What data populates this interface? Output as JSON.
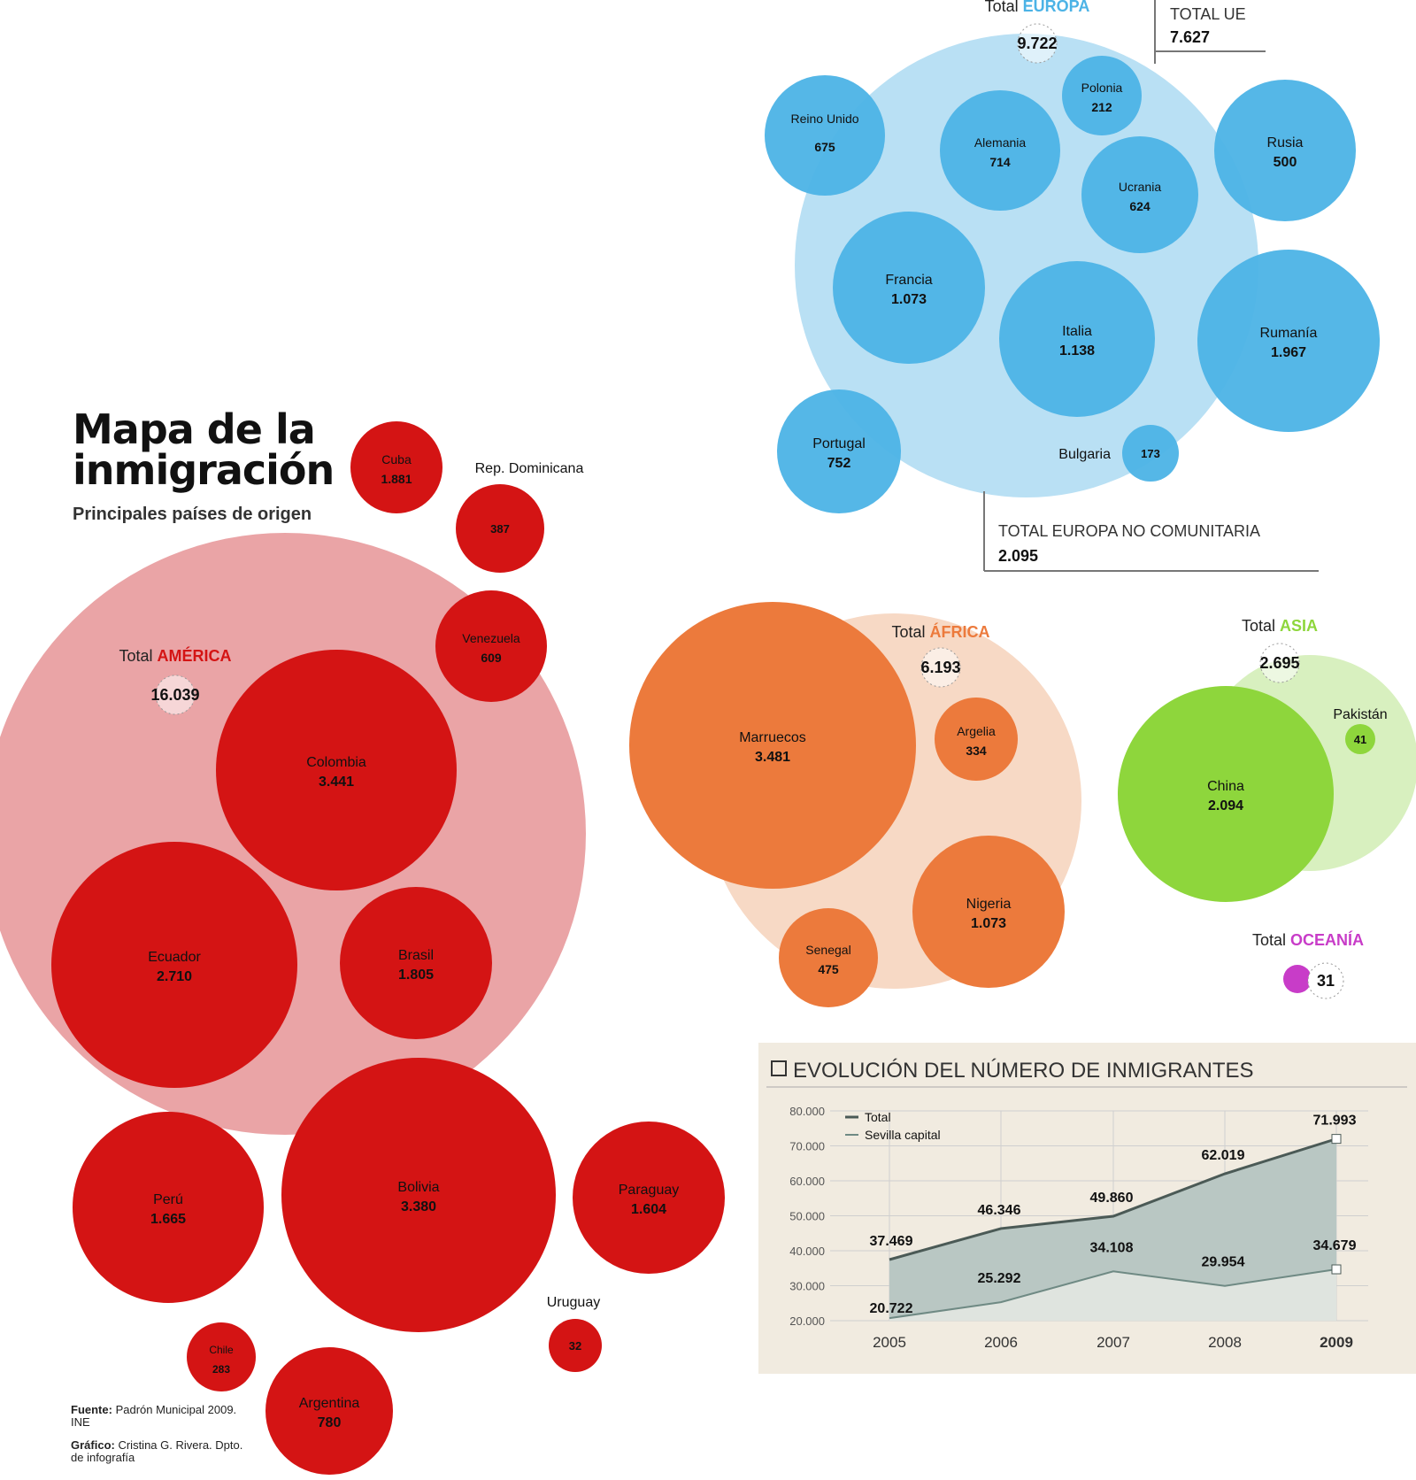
{
  "title": "Mapa de la inmigración",
  "subtitle": "Principales países de origen",
  "source": {
    "label": "Fuente:",
    "text": "Padrón Municipal 2009. INE"
  },
  "credit": {
    "label": "Gráfico:",
    "text": "Cristina G. Rivera. Dpto. de infografía"
  },
  "colors": {
    "america": "#d41414",
    "america_total": "#eaa4a6",
    "europa": "#4cb3e6",
    "europa_total": "#b9e0f4",
    "africa": "#ec7a3c",
    "africa_total": "#f7d9c5",
    "asia": "#8ed63c",
    "asia_total": "#d8f0bf",
    "oceania": "#c83cc8",
    "chart_area": "#b9c7c3",
    "chart_bg": "#f1ebe0"
  },
  "chart_data": [
    {
      "type": "bubble",
      "group": "AMÉRICA",
      "total_label": "Total",
      "total": "16.039",
      "items": [
        {
          "label": "Cuba",
          "value": "1.881"
        },
        {
          "label": "Rep. Dominicana",
          "value": "387"
        },
        {
          "label": "Venezuela",
          "value": "609"
        },
        {
          "label": "Colombia",
          "value": "3.441"
        },
        {
          "label": "Ecuador",
          "value": "2.710"
        },
        {
          "label": "Brasil",
          "value": "1.805"
        },
        {
          "label": "Perú",
          "value": "1.665"
        },
        {
          "label": "Bolivia",
          "value": "3.380"
        },
        {
          "label": "Paraguay",
          "value": "1.604"
        },
        {
          "label": "Uruguay",
          "value": "32"
        },
        {
          "label": "Chile",
          "value": "283"
        },
        {
          "label": "Argentina",
          "value": "780"
        }
      ]
    },
    {
      "type": "bubble",
      "group": "EUROPA",
      "total_label": "Total",
      "total": "9.722",
      "subtotals": [
        {
          "label": "TOTAL UE",
          "value": "7.627"
        },
        {
          "label": "TOTAL EUROPA NO COMUNITARIA",
          "value": "2.095"
        }
      ],
      "items": [
        {
          "label": "Reino Unido",
          "value": "675"
        },
        {
          "label": "Alemania",
          "value": "714"
        },
        {
          "label": "Polonia",
          "value": "212"
        },
        {
          "label": "Ucrania",
          "value": "624"
        },
        {
          "label": "Rusia",
          "value": "500"
        },
        {
          "label": "Francia",
          "value": "1.073"
        },
        {
          "label": "Italia",
          "value": "1.138"
        },
        {
          "label": "Rumanía",
          "value": "1.967"
        },
        {
          "label": "Portugal",
          "value": "752"
        },
        {
          "label": "Bulgaria",
          "value": "173"
        }
      ]
    },
    {
      "type": "bubble",
      "group": "ÁFRICA",
      "total_label": "Total",
      "total": "6.193",
      "items": [
        {
          "label": "Marruecos",
          "value": "3.481"
        },
        {
          "label": "Argelia",
          "value": "334"
        },
        {
          "label": "Nigeria",
          "value": "1.073"
        },
        {
          "label": "Senegal",
          "value": "475"
        }
      ]
    },
    {
      "type": "bubble",
      "group": "ASIA",
      "total_label": "Total",
      "total": "2.695",
      "items": [
        {
          "label": "China",
          "value": "2.094"
        },
        {
          "label": "Pakistán",
          "value": "41"
        }
      ]
    },
    {
      "type": "bubble",
      "group": "OCEANÍA",
      "total_label": "Total",
      "total": "31",
      "items": []
    },
    {
      "type": "area",
      "title": "EVOLUCIÓN DEL NÚMERO DE INMIGRANTES",
      "x": [
        "2005",
        "2006",
        "2007",
        "2008",
        "2009"
      ],
      "ylim": [
        20000,
        80000
      ],
      "yticks": [
        "20.000",
        "30.000",
        "40.000",
        "50.000",
        "60.000",
        "70.000",
        "80.000"
      ],
      "series": [
        {
          "name": "Total",
          "values": [
            37469,
            46346,
            49860,
            62019,
            71993
          ],
          "labels": [
            "37.469",
            "46.346",
            "49.860",
            "62.019",
            "71.993"
          ]
        },
        {
          "name": "Sevilla capital",
          "values": [
            20722,
            25292,
            34108,
            29954,
            34679
          ],
          "labels": [
            "20.722",
            "25.292",
            "34.108",
            "29.954",
            "34.679"
          ]
        }
      ]
    }
  ]
}
